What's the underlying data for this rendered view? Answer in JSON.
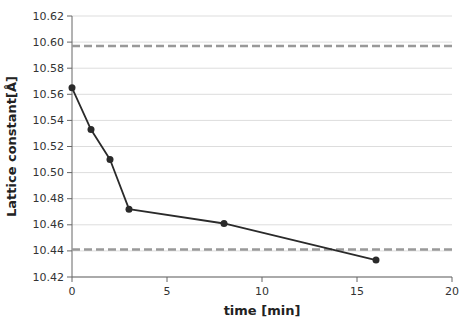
{
  "chart_data": {
    "type": "line",
    "x": [
      0,
      1,
      2,
      3,
      8,
      16
    ],
    "values": [
      10.565,
      10.533,
      10.51,
      10.472,
      10.461,
      10.433
    ],
    "color": "#2a2a2a",
    "marker": "circle",
    "xlabel": "time [min]",
    "ylabel": "Lattice constant[Å]",
    "xlim": [
      0,
      20
    ],
    "ylim": [
      10.42,
      10.62
    ],
    "xticks": [
      0,
      5,
      10,
      15,
      20
    ],
    "yticks": [
      10.42,
      10.44,
      10.46,
      10.48,
      {
        "value": 10.5,
        "label": "10.50"
      },
      10.52,
      10.54,
      10.56,
      10.58,
      {
        "value": 10.6,
        "label": "10.60"
      },
      10.62
    ],
    "grid": true,
    "reference_lines": {
      "values": [
        10.597,
        10.441
      ],
      "color": "#999999",
      "line_style": "dashed"
    }
  }
}
